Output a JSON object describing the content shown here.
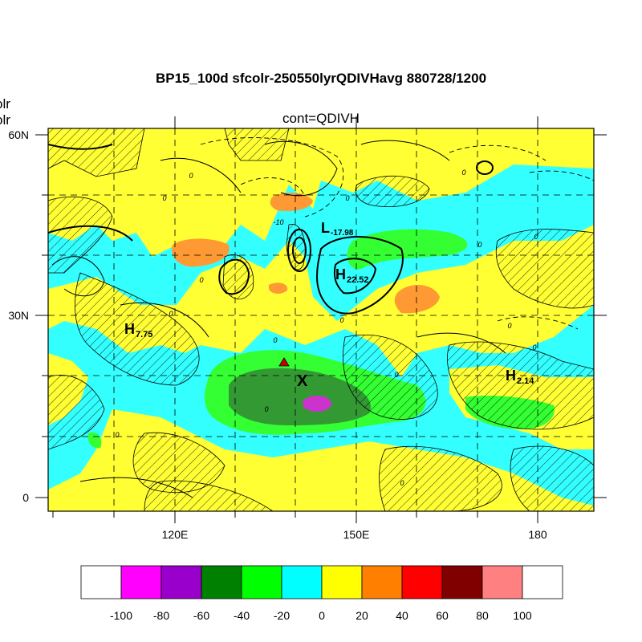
{
  "title": "BP15_100d sfcolr-250550lyrQDIVHavg  880728/1200",
  "subtitle": "cont=QDIVH",
  "left_labels": [
    "olr",
    "olr"
  ],
  "lat_labels": [
    "60N",
    "30N",
    "0"
  ],
  "lon_labels": [
    "120E",
    "150E",
    "180"
  ],
  "colorbar": {
    "tick_labels": [
      "-100",
      "-80",
      "-60",
      "-40",
      "-20",
      "0",
      "20",
      "40",
      "60",
      "80",
      "100"
    ],
    "colors": [
      "#ffffff",
      "#ff00ff",
      "#9900cc",
      "#008000",
      "#00ff00",
      "#00ffff",
      "#ffff00",
      "#ff8000",
      "#ff0000",
      "#800000",
      "#ff8080",
      "#ffffff"
    ]
  },
  "markers": {
    "lows": [
      {
        "letter": "L",
        "value": "-17.98"
      }
    ],
    "highs": [
      {
        "letter": "H",
        "value": "22.52"
      },
      {
        "letter": "H",
        "value": "7.75"
      },
      {
        "letter": "H",
        "value": "2.14"
      }
    ],
    "x_mark": "X",
    "contour_labels": [
      "0",
      "0",
      "0",
      "0",
      "0",
      "0",
      "0",
      "0",
      "0",
      "0",
      "0",
      "0",
      "0",
      "0",
      "0",
      "-10",
      "0"
    ]
  }
}
